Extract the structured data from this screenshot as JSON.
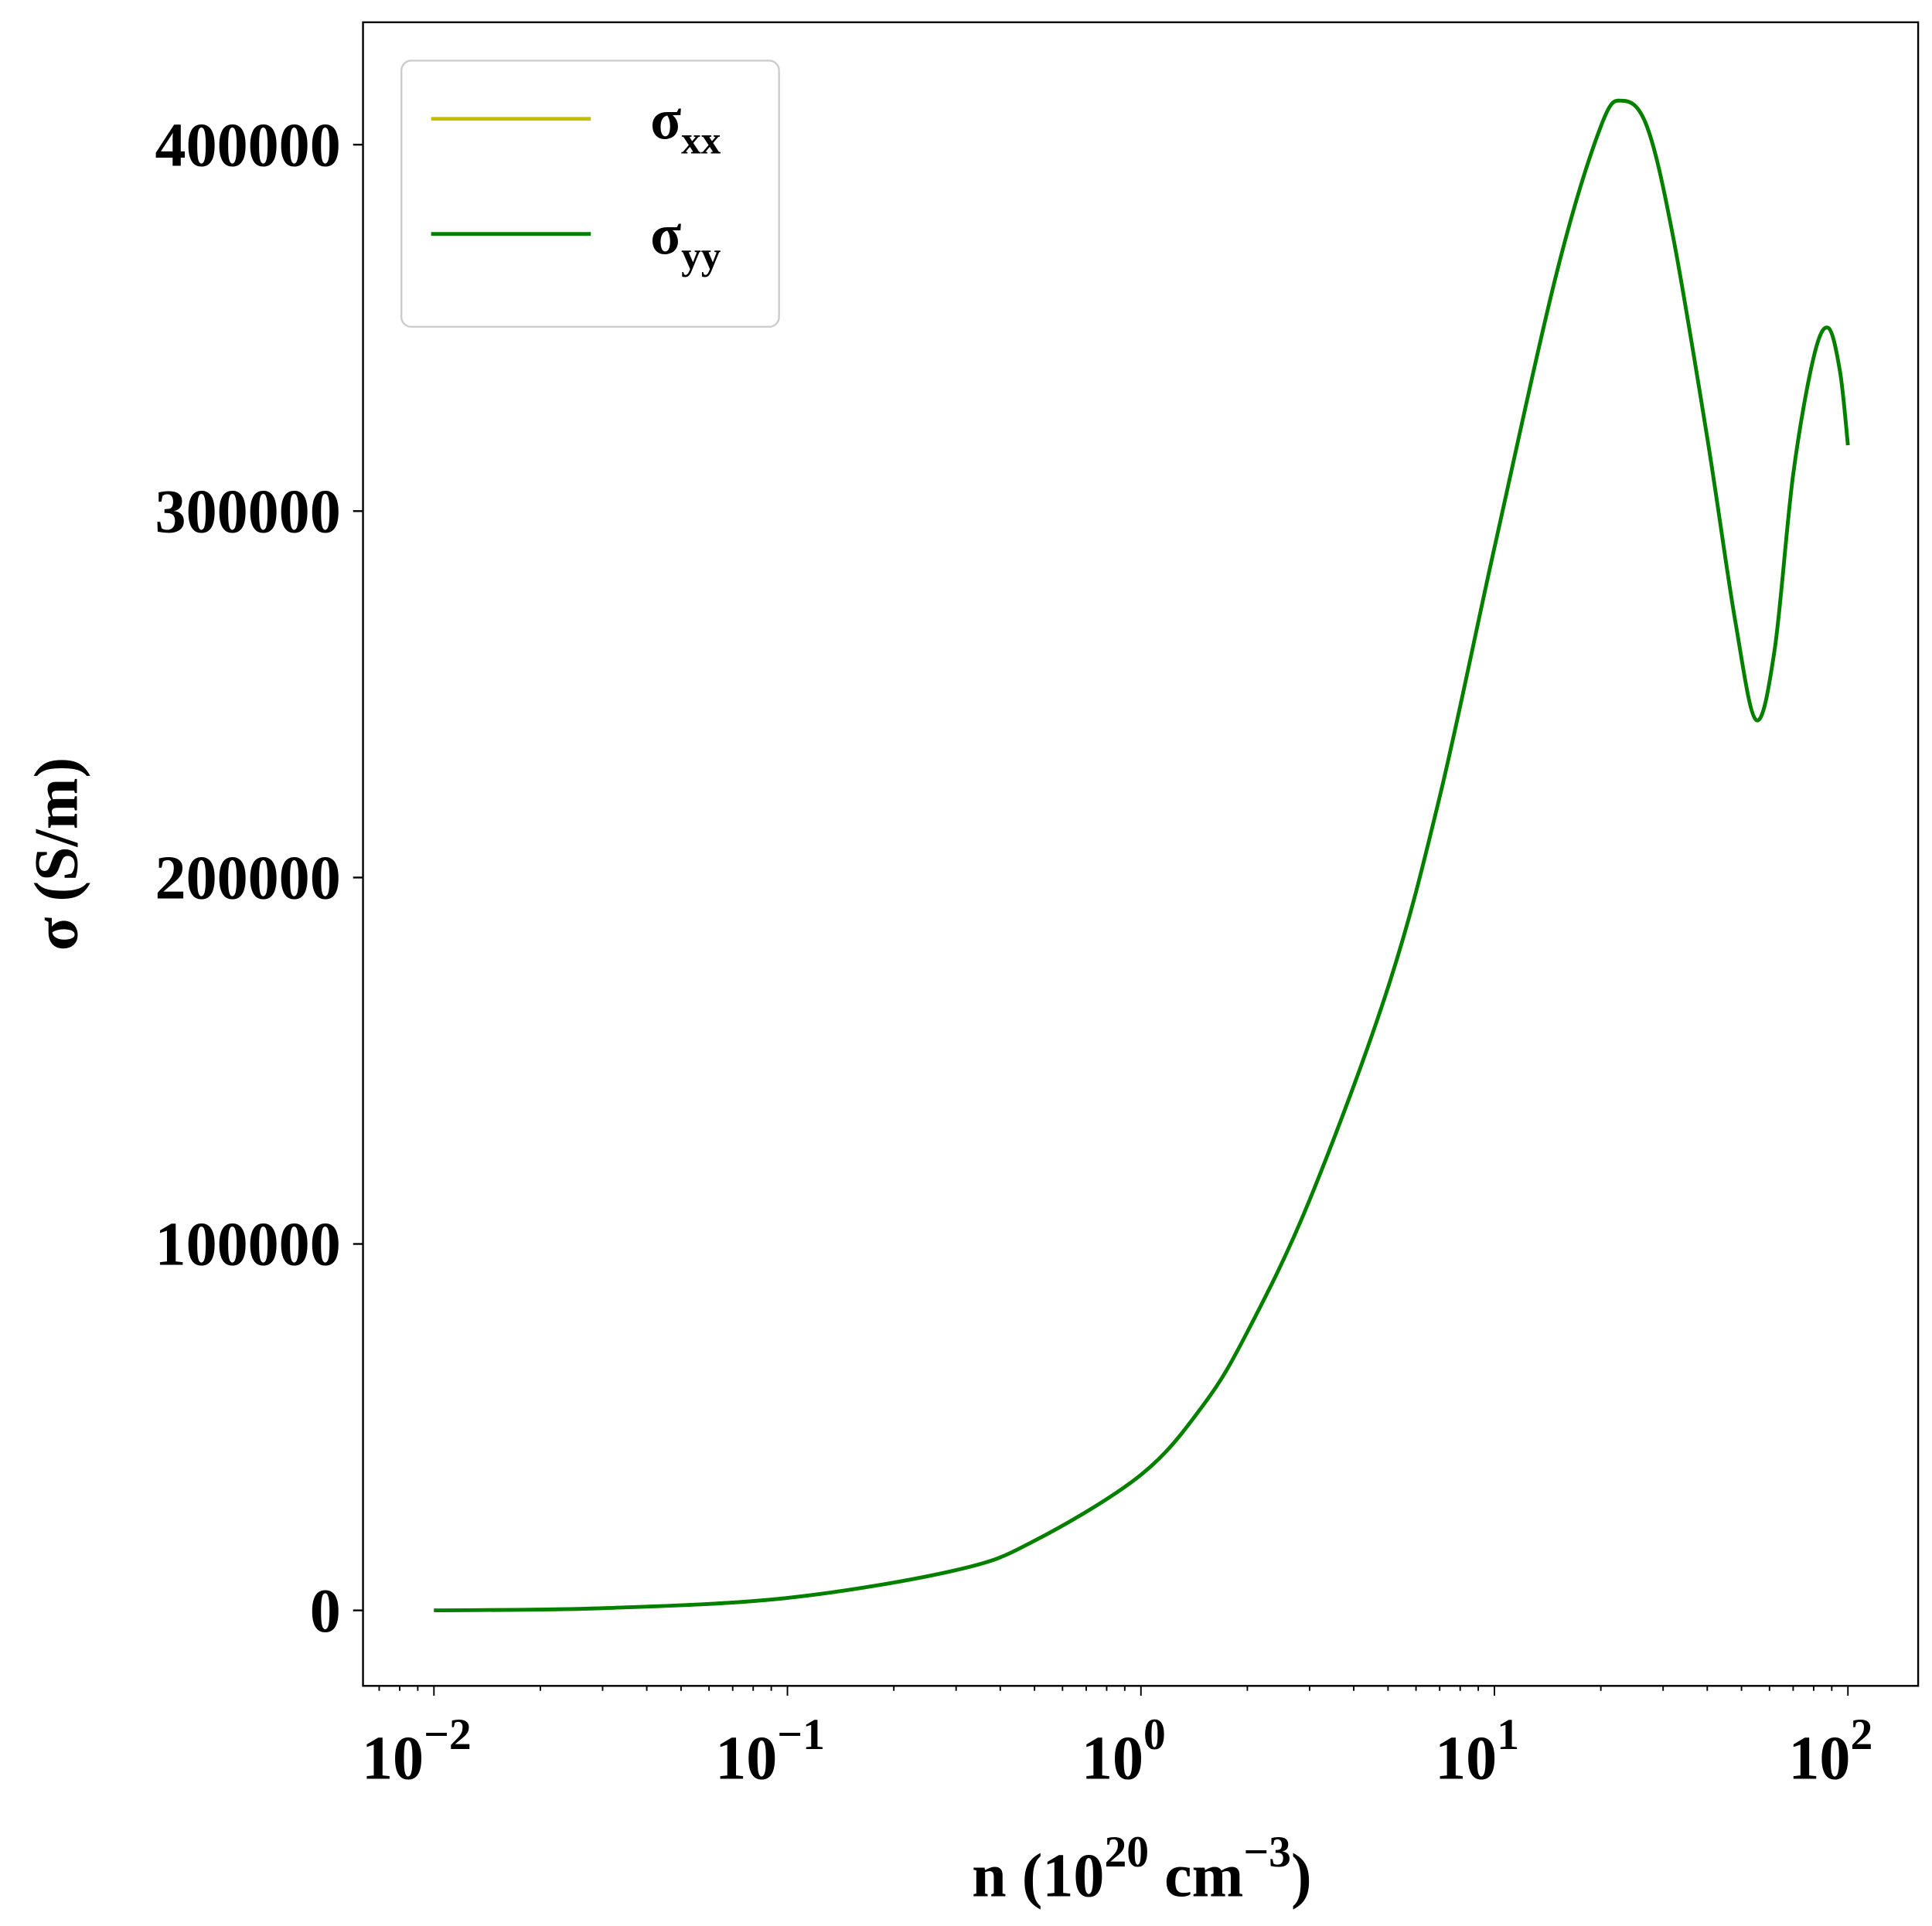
{
  "chart_data": {
    "type": "line",
    "xlabel": {
      "base": "n (10",
      "sup1": "20",
      "mid": " cm",
      "sup2": "−3",
      "end": ")"
    },
    "ylabel": "σ (S/m)",
    "xscale": "log",
    "xlim": [
      0.0063,
      158
    ],
    "ylim": [
      -20600,
      433400
    ],
    "grid": false,
    "legend_position": "top-left",
    "xticks": [
      {
        "value": 0.01,
        "base": "10",
        "exp": "−2"
      },
      {
        "value": 0.1,
        "base": "10",
        "exp": "−1"
      },
      {
        "value": 1,
        "base": "10",
        "exp": "0"
      },
      {
        "value": 10,
        "base": "10",
        "exp": "1"
      },
      {
        "value": 100,
        "base": "10",
        "exp": "2"
      }
    ],
    "yticks": [
      {
        "value": 0,
        "label": "0"
      },
      {
        "value": 100000,
        "label": "100000"
      },
      {
        "value": 200000,
        "label": "200000"
      },
      {
        "value": 300000,
        "label": "300000"
      },
      {
        "value": 400000,
        "label": "400000"
      }
    ],
    "x": [
      0.01,
      0.03,
      0.1,
      0.3,
      0.5,
      1,
      1.5,
      2,
      3,
      5,
      7,
      10,
      15,
      20,
      23,
      27,
      32,
      40,
      48,
      55,
      62,
      70,
      80,
      88,
      95,
      100
    ],
    "series": [
      {
        "name": "σxx",
        "label_main": "σ",
        "label_sub": "xx",
        "color": "#bfbf00",
        "values": [
          0,
          600,
          3400,
          11000,
          19000,
          37000,
          56000,
          76000,
          112000,
          170000,
          222000,
          290000,
          365000,
          405000,
          412000,
          405000,
          375000,
          320000,
          270000,
          243000,
          262000,
          310000,
          342000,
          350000,
          338000,
          318000
        ]
      },
      {
        "name": "σyy",
        "label_main": "σ",
        "label_sub": "yy",
        "color": "#008000",
        "values": [
          0,
          600,
          3400,
          11000,
          19000,
          37000,
          56000,
          76000,
          112000,
          170000,
          222000,
          290000,
          365000,
          405000,
          412000,
          405000,
          375000,
          320000,
          270000,
          243000,
          262000,
          310000,
          342000,
          350000,
          338000,
          318000
        ]
      }
    ]
  }
}
